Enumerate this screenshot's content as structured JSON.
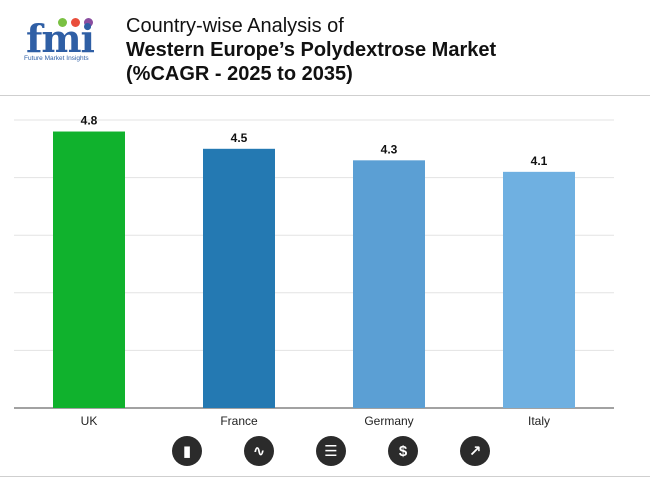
{
  "header": {
    "logo_text": "fmi",
    "logo_subtitle": "Future Market Insights",
    "title_line1": "Country-wise Analysis of",
    "title_line2": "Western Europe’s Polydextrose Market",
    "title_line3": "(%CAGR - 2025 to 2035)"
  },
  "icons": [
    "bar-chart-icon",
    "trend-icon",
    "report-icon",
    "dollar-icon",
    "line-chart-icon"
  ],
  "icon_glyphs": [
    "▮",
    "∿",
    "☰",
    "$",
    "↗"
  ],
  "chart_data": {
    "type": "bar",
    "categories": [
      "UK",
      "France",
      "Germany",
      "Italy"
    ],
    "values": [
      4.8,
      4.5,
      4.3,
      4.1
    ],
    "value_labels": [
      "4.8",
      "4.5",
      "4.3",
      "4.1"
    ],
    "colors": [
      "#10b22d",
      "#2479b2",
      "#5b9fd4",
      "#6fb0e1"
    ],
    "ylim": [
      0,
      5.0
    ],
    "grid": true,
    "y_tick_labels_shown": false,
    "title": "",
    "xlabel": "",
    "ylabel": ""
  }
}
